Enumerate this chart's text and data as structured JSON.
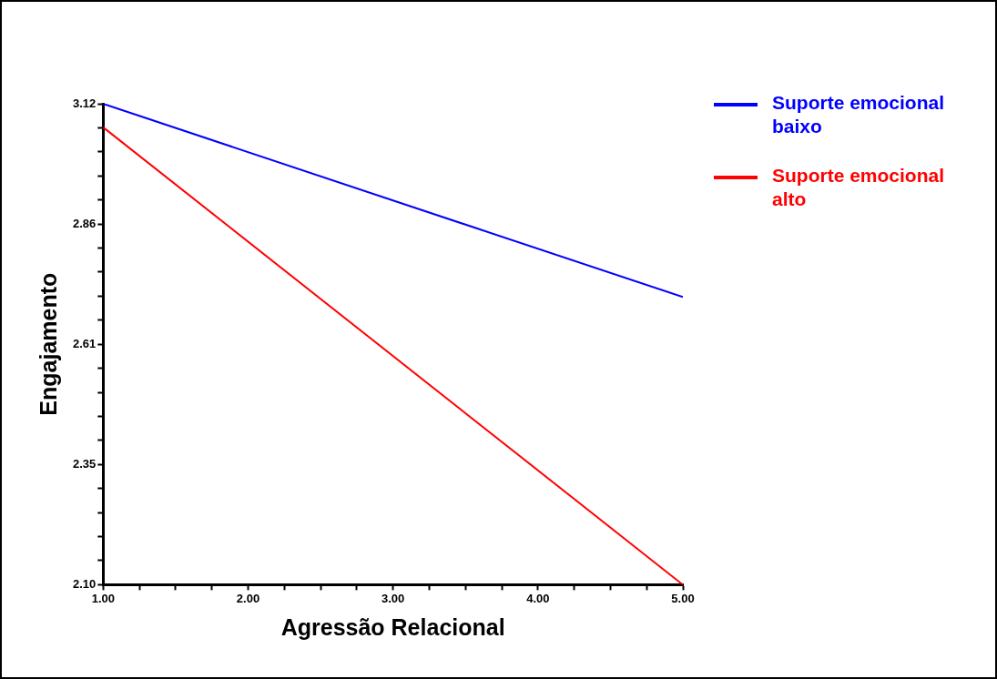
{
  "chart_data": {
    "type": "line",
    "xlabel": "Agressão Relacional",
    "ylabel": "Engajamento",
    "x": [
      1,
      5
    ],
    "series": [
      {
        "name": "Suporte emocional baixo",
        "color": "#0000ff",
        "values": [
          3.12,
          2.71
        ]
      },
      {
        "name": "Suporte emocional alto",
        "color": "#ff0000",
        "values": [
          3.07,
          2.1
        ]
      }
    ],
    "xlim": [
      1,
      5
    ],
    "ylim": [
      2.1,
      3.12
    ],
    "xticks": [
      {
        "value": 1,
        "label": "1.00"
      },
      {
        "value": 1.25,
        "label": null
      },
      {
        "value": 1.5,
        "label": null
      },
      {
        "value": 1.75,
        "label": null
      },
      {
        "value": 2,
        "label": "2.00"
      },
      {
        "value": 2.25,
        "label": null
      },
      {
        "value": 2.5,
        "label": null
      },
      {
        "value": 2.75,
        "label": null
      },
      {
        "value": 3,
        "label": "3.00"
      },
      {
        "value": 3.25,
        "label": null
      },
      {
        "value": 3.5,
        "label": null
      },
      {
        "value": 3.75,
        "label": null
      },
      {
        "value": 4,
        "label": "4.00"
      },
      {
        "value": 4.25,
        "label": null
      },
      {
        "value": 4.5,
        "label": null
      },
      {
        "value": 4.75,
        "label": null
      },
      {
        "value": 5,
        "label": "5.00"
      }
    ],
    "yticks": [
      {
        "value": 2.1,
        "label": "2.10"
      },
      {
        "value": 2.151,
        "label": null
      },
      {
        "value": 2.202,
        "label": null
      },
      {
        "value": 2.253,
        "label": null
      },
      {
        "value": 2.304,
        "label": null
      },
      {
        "value": 2.355,
        "label": "2.35"
      },
      {
        "value": 2.406,
        "label": null
      },
      {
        "value": 2.457,
        "label": null
      },
      {
        "value": 2.508,
        "label": null
      },
      {
        "value": 2.559,
        "label": null
      },
      {
        "value": 2.61,
        "label": "2.61"
      },
      {
        "value": 2.661,
        "label": null
      },
      {
        "value": 2.712,
        "label": null
      },
      {
        "value": 2.763,
        "label": null
      },
      {
        "value": 2.814,
        "label": null
      },
      {
        "value": 2.865,
        "label": "2.86"
      },
      {
        "value": 2.916,
        "label": null
      },
      {
        "value": 2.967,
        "label": null
      },
      {
        "value": 3.018,
        "label": null
      },
      {
        "value": 3.069,
        "label": null
      },
      {
        "value": 3.12,
        "label": "3.12"
      }
    ],
    "grid": false,
    "legend": "right",
    "marker": "none",
    "line_style": "solid"
  }
}
